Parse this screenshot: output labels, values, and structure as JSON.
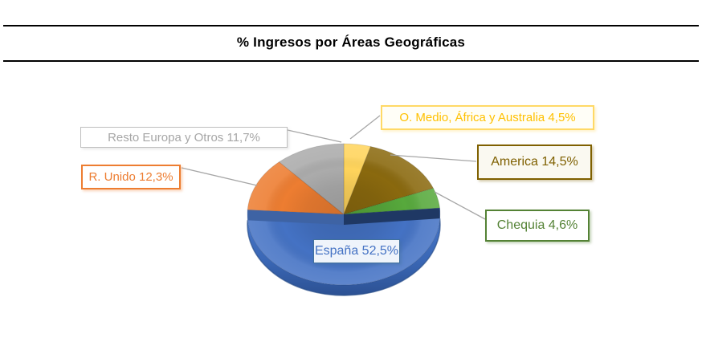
{
  "title": "% Ingresos por Áreas Geográficas",
  "chart_data": {
    "type": "pie",
    "title": "% Ingresos por Áreas Geográficas",
    "unit": "%",
    "effect": "3d",
    "start_angle_deg": 0,
    "direction": "clockwise",
    "legend": "none",
    "slices": [
      {
        "id": "o-medio",
        "name": "O. Medio, África y Australia",
        "value": 4.5,
        "label": "O. Medio, África y Australia 4,5%",
        "color": "#FFD45C",
        "text_color": "#FFC000",
        "border_color": "#FFD966"
      },
      {
        "id": "america",
        "name": "America",
        "value": 14.5,
        "label": "America 14,5%",
        "color": "#8A690E",
        "text_color": "#7F6000",
        "border_color": "#7F6000"
      },
      {
        "id": "chequia",
        "name": "Chequia",
        "value": 4.6,
        "label": "Chequia 4,6%",
        "color": "#57A93C",
        "text_color": "#548235",
        "border_color": "#548235"
      },
      {
        "id": "espana",
        "name": "España",
        "value": 52.5,
        "label": "España 52,5%",
        "color": "#4472C4",
        "text_color": "#4472C4",
        "border_color": "#41719C"
      },
      {
        "id": "r-unido",
        "name": "R. Unido",
        "value": 12.3,
        "label": "R. Unido 12,3%",
        "color": "#ED7D31",
        "text_color": "#ED7D31",
        "border_color": "#ED7D31"
      },
      {
        "id": "resto-europa",
        "name": "Resto Europa y Otros",
        "value": 11.7,
        "label": "Resto Europa y Otros 11,7%",
        "color": "#ABABAB",
        "text_color": "#A6A6A6",
        "border_color": "#BFBFBF"
      }
    ],
    "colors_3d": {
      "front_wall_top": "#4A79CC",
      "front_wall_bottom": "#2C5193",
      "start_wall": "#1F3864",
      "end_wall": "#3E63A4",
      "edge_line": "#274B85",
      "leader_line": "#A6A6A6"
    }
  }
}
